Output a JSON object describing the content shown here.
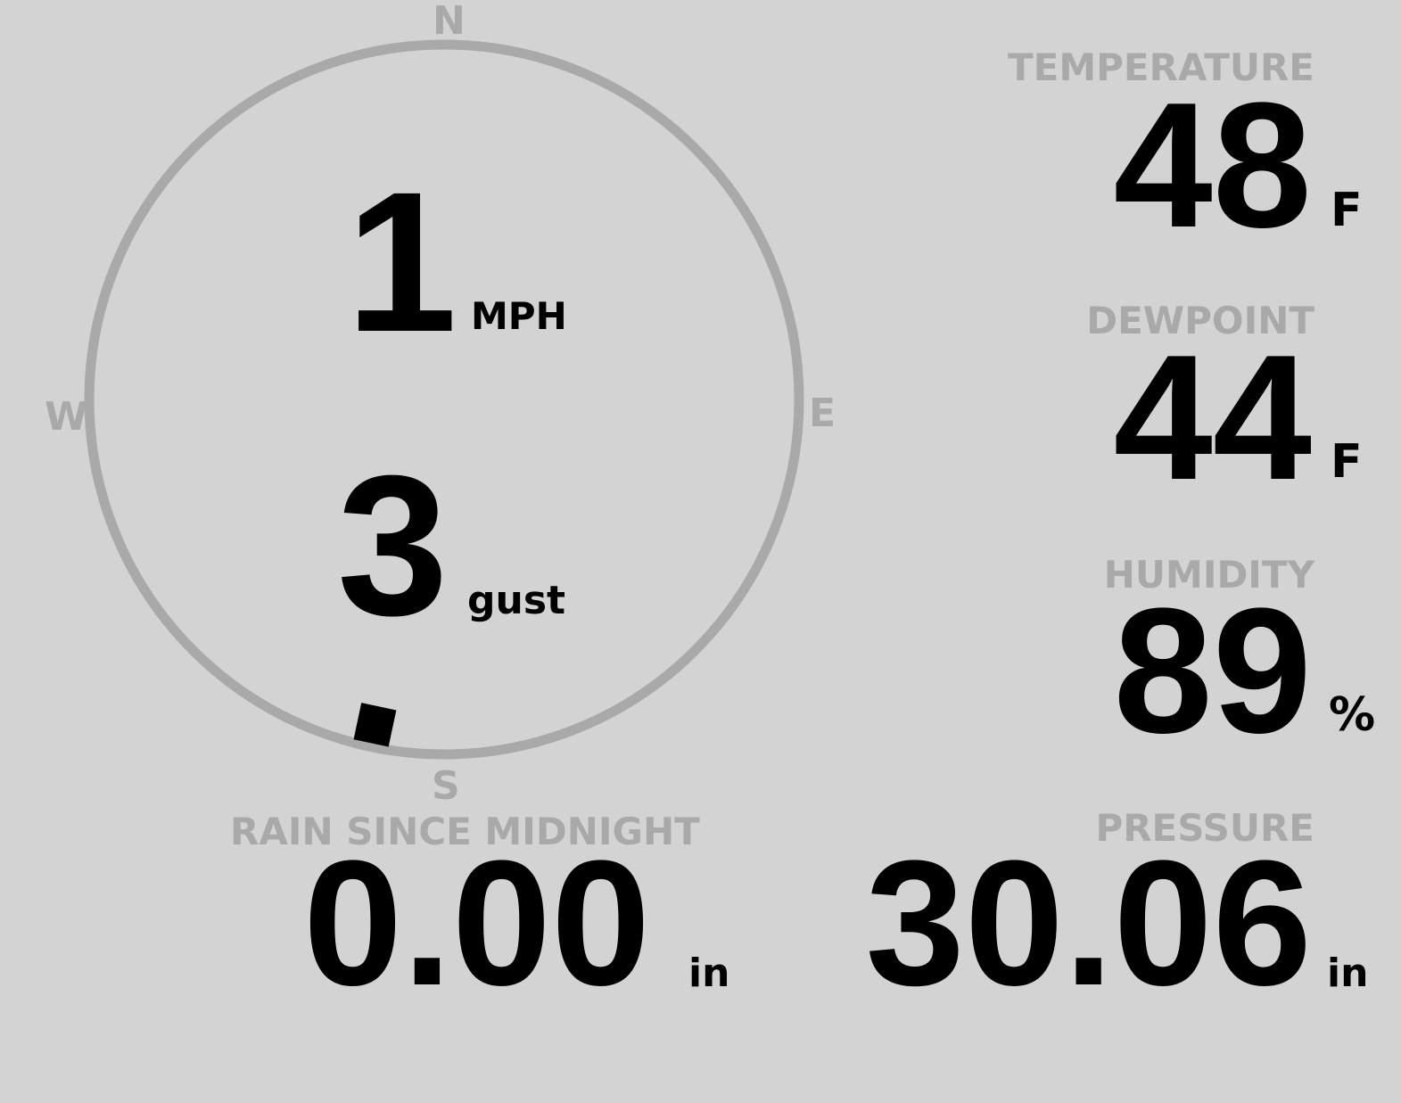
{
  "wind": {
    "cardinals": {
      "n": "N",
      "e": "E",
      "s": "S",
      "w": "W"
    },
    "speed": "1",
    "speed_unit": "MPH",
    "gust": "3",
    "gust_unit": "gust",
    "direction_deg": 192,
    "ring_color": "#a9a9a9",
    "marker_color": "#000000"
  },
  "temperature": {
    "label": "TEMPERATURE",
    "value": "48",
    "unit": "F"
  },
  "dewpoint": {
    "label": "DEWPOINT",
    "value": "44",
    "unit": "F"
  },
  "humidity": {
    "label": "HUMIDITY",
    "value": "89",
    "unit": "%"
  },
  "rain": {
    "label": "RAIN SINCE MIDNIGHT",
    "value": "0.00",
    "unit": "in"
  },
  "pressure": {
    "label": "PRESSURE",
    "value": "30.06",
    "unit": "in"
  }
}
